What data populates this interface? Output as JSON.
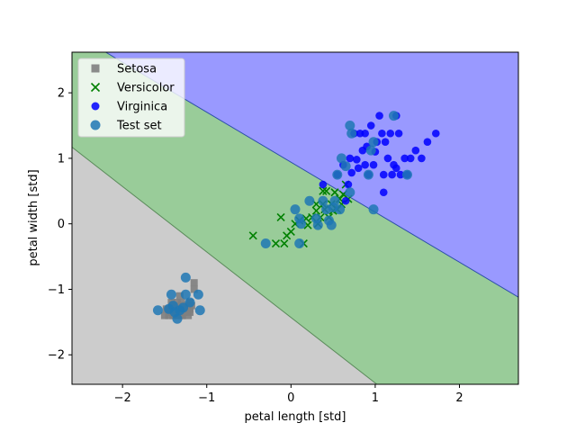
{
  "chart_data": {
    "type": "scatter",
    "title": "",
    "xlabel": "petal length [std]",
    "ylabel": "petal width [std]",
    "xlim": [
      -2.6,
      2.7
    ],
    "ylim": [
      -2.45,
      2.62
    ],
    "xticks": [
      -2,
      -1,
      0,
      1,
      2
    ],
    "yticks": [
      -2,
      -1,
      0,
      1,
      2
    ],
    "grid": false,
    "legend_placement": "top-left",
    "decision_regions": [
      {
        "class": "Setosa",
        "color": "#cccccc",
        "boundary_with_next": [
          [
            -2.6,
            1.17
          ],
          [
            1.02,
            -2.45
          ]
        ]
      },
      {
        "class": "Versicolor",
        "color": "#99cc99",
        "boundary_with_next": [
          [
            -2.2,
            2.62
          ],
          [
            2.7,
            -1.12
          ]
        ]
      },
      {
        "class": "Virginica",
        "color": "#9999ff"
      }
    ],
    "series": [
      {
        "name": "Setosa",
        "marker": "square",
        "color": "#808080",
        "points": [
          [
            -1.5,
            -1.4
          ],
          [
            -1.45,
            -1.3
          ],
          [
            -1.4,
            -1.35
          ],
          [
            -1.35,
            -1.3
          ],
          [
            -1.3,
            -1.4
          ],
          [
            -1.25,
            -1.35
          ],
          [
            -1.2,
            -1.3
          ],
          [
            -1.3,
            -1.2
          ],
          [
            -1.4,
            -1.25
          ],
          [
            -1.45,
            -1.4
          ],
          [
            -1.25,
            -1.25
          ],
          [
            -1.35,
            -1.4
          ],
          [
            -1.2,
            -1.2
          ],
          [
            -1.15,
            -1.0
          ],
          [
            -1.3,
            -1.3
          ],
          [
            -1.28,
            -1.35
          ],
          [
            -1.38,
            -1.3
          ],
          [
            -1.42,
            -1.2
          ],
          [
            -1.32,
            -1.1
          ],
          [
            -1.22,
            -1.4
          ],
          [
            -1.18,
            -1.25
          ],
          [
            -1.48,
            -1.3
          ],
          [
            -1.33,
            -1.35
          ],
          [
            -1.27,
            -1.3
          ],
          [
            -1.36,
            -1.25
          ],
          [
            -1.29,
            -1.4
          ],
          [
            -1.24,
            -1.35
          ],
          [
            -1.4,
            -1.4
          ],
          [
            -1.3,
            -1.25
          ],
          [
            -1.2,
            -1.35
          ],
          [
            -1.35,
            -1.2
          ],
          [
            -1.25,
            -1.3
          ],
          [
            -1.45,
            -1.35
          ],
          [
            -1.15,
            -0.9
          ]
        ]
      },
      {
        "name": "Versicolor",
        "marker": "x",
        "color": "#008000",
        "points": [
          [
            -0.45,
            -0.18
          ],
          [
            -0.18,
            -0.3
          ],
          [
            -0.12,
            0.1
          ],
          [
            -0.08,
            -0.3
          ],
          [
            -0.05,
            -0.18
          ],
          [
            0.0,
            -0.12
          ],
          [
            0.05,
            0.0
          ],
          [
            0.1,
            0.05
          ],
          [
            0.15,
            -0.3
          ],
          [
            0.18,
            0.08
          ],
          [
            0.2,
            -0.02
          ],
          [
            0.25,
            0.1
          ],
          [
            0.3,
            0.2
          ],
          [
            0.32,
            0.0
          ],
          [
            0.35,
            0.1
          ],
          [
            0.38,
            0.3
          ],
          [
            0.4,
            0.22
          ],
          [
            0.42,
            0.5
          ],
          [
            0.45,
            0.1
          ],
          [
            0.48,
            0.3
          ],
          [
            0.5,
            0.2
          ],
          [
            0.52,
            0.48
          ],
          [
            0.55,
            0.22
          ],
          [
            0.58,
            0.38
          ],
          [
            0.6,
            0.3
          ],
          [
            0.62,
            0.45
          ],
          [
            0.65,
            0.6
          ],
          [
            0.68,
            0.38
          ],
          [
            0.38,
            0.5
          ],
          [
            0.3,
            0.3
          ]
        ]
      },
      {
        "name": "Virginica",
        "marker": "circle",
        "color": "#0000ff",
        "points": [
          [
            0.38,
            0.6
          ],
          [
            0.55,
            0.75
          ],
          [
            0.62,
            0.9
          ],
          [
            0.65,
            0.35
          ],
          [
            0.7,
            1.0
          ],
          [
            0.72,
            0.78
          ],
          [
            0.75,
            1.38
          ],
          [
            0.78,
            0.98
          ],
          [
            0.8,
            0.85
          ],
          [
            0.82,
            1.38
          ],
          [
            0.85,
            1.12
          ],
          [
            0.88,
            1.38
          ],
          [
            0.9,
            1.18
          ],
          [
            0.92,
            0.75
          ],
          [
            0.95,
            1.5
          ],
          [
            0.98,
            0.9
          ],
          [
            1.0,
            1.1
          ],
          [
            1.02,
            1.25
          ],
          [
            1.05,
            1.65
          ],
          [
            1.08,
            1.38
          ],
          [
            1.1,
            0.75
          ],
          [
            1.12,
            1.25
          ],
          [
            1.15,
            1.0
          ],
          [
            1.18,
            1.38
          ],
          [
            1.2,
            0.75
          ],
          [
            1.22,
            0.9
          ],
          [
            1.25,
            1.65
          ],
          [
            1.28,
            1.38
          ],
          [
            1.3,
            0.75
          ],
          [
            1.35,
            1.0
          ],
          [
            1.38,
            0.75
          ],
          [
            1.42,
            1.0
          ],
          [
            1.48,
            1.12
          ],
          [
            1.55,
            1.0
          ],
          [
            1.62,
            1.25
          ],
          [
            1.72,
            1.38
          ],
          [
            1.1,
            0.48
          ],
          [
            0.68,
            0.6
          ],
          [
            0.88,
            0.9
          ],
          [
            1.25,
            0.85
          ]
        ]
      },
      {
        "name": "Test set",
        "marker": "circle",
        "color": "#1f77b4",
        "points": [
          [
            -1.58,
            -1.32
          ],
          [
            -1.45,
            -1.3
          ],
          [
            -1.42,
            -1.08
          ],
          [
            -1.4,
            -1.25
          ],
          [
            -1.35,
            -1.45
          ],
          [
            -1.32,
            -1.32
          ],
          [
            -1.28,
            -1.28
          ],
          [
            -1.25,
            -0.82
          ],
          [
            -1.25,
            -1.08
          ],
          [
            -1.2,
            -1.2
          ],
          [
            -1.1,
            -1.08
          ],
          [
            -1.08,
            -1.32
          ],
          [
            -1.38,
            -1.35
          ],
          [
            -0.3,
            -0.3
          ],
          [
            0.05,
            0.22
          ],
          [
            0.1,
            0.08
          ],
          [
            0.1,
            -0.3
          ],
          [
            0.12,
            0.0
          ],
          [
            0.22,
            0.35
          ],
          [
            0.3,
            0.08
          ],
          [
            0.32,
            -0.02
          ],
          [
            0.38,
            0.35
          ],
          [
            0.42,
            0.22
          ],
          [
            0.45,
            0.05
          ],
          [
            0.48,
            -0.02
          ],
          [
            0.5,
            0.25
          ],
          [
            0.52,
            0.35
          ],
          [
            0.55,
            0.75
          ],
          [
            0.58,
            0.22
          ],
          [
            0.6,
            1.0
          ],
          [
            0.65,
            0.88
          ],
          [
            0.7,
            0.48
          ],
          [
            0.7,
            1.5
          ],
          [
            0.72,
            1.38
          ],
          [
            0.92,
            0.75
          ],
          [
            0.95,
            1.12
          ],
          [
            0.98,
            1.25
          ],
          [
            0.98,
            0.22
          ],
          [
            1.22,
            1.65
          ],
          [
            1.38,
            0.75
          ]
        ]
      }
    ]
  }
}
